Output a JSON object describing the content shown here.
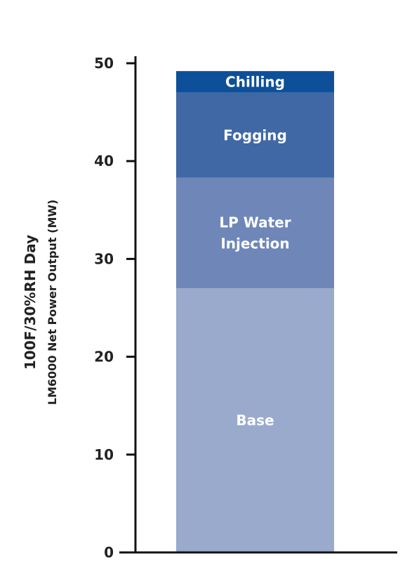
{
  "chart_data": {
    "type": "bar",
    "stacked": true,
    "categories": [
      ""
    ],
    "series": [
      {
        "name": "Base",
        "values": [
          27.0
        ],
        "color": "#9aaacc"
      },
      {
        "name": "LP Water Injection",
        "values": [
          11.3
        ],
        "color": "#6e87b8",
        "label_lines": [
          "LP Water",
          "Injection"
        ]
      },
      {
        "name": "Fogging",
        "values": [
          8.7
        ],
        "color": "#3f68a5"
      },
      {
        "name": "Chilling",
        "values": [
          2.2
        ],
        "color": "#0d5099"
      }
    ],
    "ylabel_lines": [
      "100F/30%RH Day",
      "LM6000 Net Power Output (MW)"
    ],
    "yticks": [
      "0",
      "10",
      "20",
      "30",
      "40",
      "50"
    ],
    "ylim": [
      0,
      50
    ],
    "grid": false
  }
}
